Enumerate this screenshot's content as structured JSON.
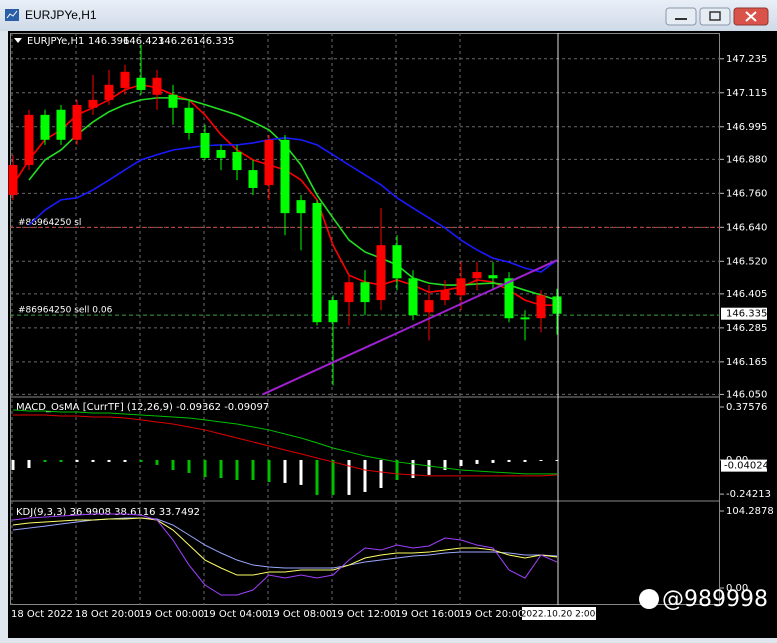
{
  "window": {
    "title": "EURJPYe,H1",
    "watermark": "@989998"
  },
  "chart_data": [
    {
      "type": "candlestick",
      "symbol": "EURJPYe,H1",
      "categories": [
        "18 Oct 2022",
        null,
        null,
        null,
        "18 Oct 20:00",
        null,
        null,
        null,
        "19 Oct 00:00",
        null,
        null,
        null,
        "19 Oct 04:00",
        null,
        null,
        null,
        "19 Oct 08:00",
        null,
        null,
        null,
        "19 Oct 12:00",
        null,
        null,
        null,
        "19 Oct 16:00",
        null,
        null,
        null,
        "19 Oct 20:00",
        null,
        null,
        null,
        null,
        null,
        null
      ],
      "cursor_label": "2022.10.20 2:00",
      "ohlc": [
        [
          146.754,
          146.895,
          146.736,
          146.86
        ],
        [
          146.86,
          147.055,
          146.842,
          147.037
        ],
        [
          147.037,
          147.055,
          146.931,
          146.949
        ],
        [
          147.055,
          147.072,
          146.931,
          146.949
        ],
        [
          146.949,
          147.09,
          146.931,
          147.072
        ],
        [
          147.062,
          147.178,
          147.037,
          147.09
        ],
        [
          147.09,
          147.196,
          147.072,
          147.143
        ],
        [
          147.132,
          147.214,
          147.108,
          147.189
        ],
        [
          147.168,
          147.285,
          147.108,
          147.125
        ],
        [
          147.108,
          147.196,
          147.055,
          147.168
        ],
        [
          147.108,
          147.143,
          147.002,
          147.062
        ],
        [
          147.062,
          147.09,
          146.949,
          146.973
        ],
        [
          146.973,
          147.002,
          146.878,
          146.885
        ],
        [
          146.913,
          146.931,
          146.842,
          146.885
        ],
        [
          146.906,
          146.931,
          146.807,
          146.842
        ],
        [
          146.842,
          146.878,
          146.754,
          146.779
        ],
        [
          146.789,
          146.966,
          146.736,
          146.949
        ],
        [
          146.949,
          146.966,
          146.612,
          146.69
        ],
        [
          146.736,
          146.754,
          146.559,
          146.69
        ],
        [
          146.726,
          146.736,
          146.294,
          146.305
        ],
        [
          146.383,
          146.4,
          146.082,
          146.305
        ],
        [
          146.376,
          146.471,
          146.294,
          146.446
        ],
        [
          146.446,
          146.489,
          146.33,
          146.376
        ],
        [
          146.383,
          146.708,
          146.347,
          146.577
        ],
        [
          146.577,
          146.612,
          146.418,
          146.46
        ],
        [
          146.46,
          146.489,
          146.312,
          146.33
        ],
        [
          146.34,
          146.436,
          146.241,
          146.383
        ],
        [
          146.383,
          146.453,
          146.365,
          146.418
        ],
        [
          146.4,
          146.517,
          146.347,
          146.46
        ],
        [
          146.46,
          146.517,
          146.418,
          146.482
        ],
        [
          146.471,
          146.517,
          146.418,
          146.46
        ],
        [
          146.46,
          146.482,
          146.305,
          146.319
        ],
        [
          146.322,
          146.347,
          146.241,
          146.315
        ],
        [
          146.319,
          146.418,
          146.269,
          146.4
        ],
        [
          146.396,
          146.423,
          146.261,
          146.335
        ]
      ],
      "up_color": "#ff0000",
      "down_color": "#00ff00",
      "series": [
        {
          "color": "#ff0000",
          "values": [
            146.79,
            146.878,
            146.949,
            146.984,
            147.037,
            147.062,
            147.09,
            147.126,
            147.143,
            147.133,
            147.108,
            147.09,
            147.037,
            146.967,
            146.913,
            146.878,
            146.86,
            146.843,
            146.807,
            146.737,
            146.577,
            146.471,
            146.447,
            146.436,
            146.454,
            146.436,
            146.411,
            146.418,
            146.429,
            146.454,
            146.447,
            146.418,
            146.383,
            146.365,
            146.365
          ]
        },
        {
          "color": "#22dd22",
          "values": [
            null,
            146.807,
            146.878,
            146.913,
            146.967,
            147.012,
            147.048,
            147.073,
            147.09,
            147.097,
            147.097,
            147.09,
            147.073,
            147.055,
            147.037,
            147.012,
            146.984,
            146.931,
            146.86,
            146.754,
            146.673,
            146.595,
            146.553,
            146.531,
            146.507,
            146.461,
            146.443,
            146.436,
            146.436,
            146.44,
            146.443,
            146.436,
            146.418,
            146.401,
            146.383
          ]
        },
        {
          "color": "#1a1aff",
          "values": [
            null,
            146.648,
            146.701,
            146.737,
            146.744,
            146.772,
            146.807,
            146.843,
            146.878,
            146.896,
            146.913,
            146.921,
            146.928,
            146.931,
            146.931,
            146.938,
            146.949,
            146.956,
            146.949,
            146.931,
            146.896,
            146.86,
            146.825,
            146.79,
            146.744,
            146.708,
            146.673,
            146.638,
            146.595,
            146.56,
            146.531,
            146.517,
            146.496,
            146.482,
            146.524
          ]
        }
      ],
      "lines": [
        {
          "label": "#86964250 sl",
          "value": 146.64,
          "color": "#c84040"
        },
        {
          "label": "#86964250 sell 0.06",
          "value": 146.33,
          "color": "#3aa03a"
        }
      ],
      "trendline": {
        "color": "#a020d0",
        "points": [
          [
            15.6,
            146.05
          ],
          [
            34,
            146.524
          ]
        ]
      },
      "ylim": [
        146.048,
        147.326
      ],
      "yticks": [
        147.235,
        147.115,
        146.995,
        {
          "value": 146.88,
          "label": "146.880"
        },
        {
          "value": 146.76,
          "label": "146.760"
        },
        {
          "value": 146.64,
          "label": "146.640"
        },
        {
          "value": 146.52,
          "label": "146.520"
        },
        146.405,
        146.285,
        146.165,
        {
          "value": 146.05,
          "label": "146.050"
        }
      ],
      "grid": true
    },
    {
      "type": "macd",
      "title": "MACD_OsMA [CurrTF] (12,26,9) -0.09362 -0.09097",
      "values": [
        -0.071,
        -0.057,
        -0.014,
        -0.014,
        -0.014,
        -0.014,
        -0.014,
        -0.014,
        -0.014,
        -0.035,
        -0.071,
        -0.092,
        -0.121,
        -0.128,
        -0.142,
        -0.142,
        -0.156,
        -0.163,
        -0.177,
        -0.248,
        -0.248,
        -0.248,
        -0.227,
        -0.199,
        -0.142,
        -0.128,
        -0.106,
        -0.071,
        -0.043,
        -0.028,
        -0.021,
        -0.014,
        -0.014,
        -0.007,
        -0.007
      ],
      "bar_colors": [
        "#ffffff",
        "#ffffff",
        "#00c000",
        "#00c000",
        "#ffffff",
        "#ffffff",
        "#ffffff",
        "#ffffff",
        "#00c000",
        "#00c000",
        "#00c000",
        "#00c000",
        "#00c000",
        "#00c000",
        "#00c000",
        "#00c000",
        "#00c000",
        "#ffffff",
        "#ffffff",
        "#00c000",
        "#00c000",
        "#ffffff",
        "#ffffff",
        "#ffffff",
        "#00c000",
        "#ffffff",
        "#ffffff",
        "#ffffff",
        "#ffffff",
        "#ffffff",
        "#ffffff",
        "#ffffff",
        "#ffffff",
        "#ffffff",
        "#ffffff"
      ],
      "series": [
        {
          "color": "#00c000",
          "values": [
            0.355,
            0.347,
            0.347,
            0.34,
            0.34,
            0.333,
            0.333,
            0.326,
            0.319,
            0.312,
            0.305,
            0.298,
            0.284,
            0.269,
            0.255,
            0.234,
            0.213,
            0.184,
            0.156,
            0.121,
            0.085,
            0.057,
            0.028,
            0.007,
            -0.014,
            -0.028,
            -0.043,
            -0.057,
            -0.071,
            -0.078,
            -0.085,
            -0.092,
            -0.099,
            -0.099,
            -0.099
          ]
        },
        {
          "color": "#e00000",
          "values": [
            0.319,
            0.319,
            0.319,
            0.312,
            0.312,
            0.305,
            0.305,
            0.298,
            0.284,
            0.269,
            0.255,
            0.234,
            0.213,
            0.184,
            0.156,
            0.128,
            0.099,
            0.071,
            0.043,
            0.014,
            -0.014,
            -0.043,
            -0.071,
            -0.085,
            -0.099,
            -0.106,
            -0.113,
            -0.113,
            -0.113,
            -0.113,
            -0.113,
            -0.113,
            -0.113,
            -0.113,
            -0.106
          ]
        }
      ],
      "current_value": -0.04024,
      "ylim": [
        -0.284,
        0.4396
      ],
      "yticks": [
        0.37576,
        {
          "value": 0,
          "label": "0.00"
        },
        -0.24213
      ]
    },
    {
      "type": "line",
      "title": "KDJ(9,3,3) 36.9908 38.6116 33.7492",
      "series": [
        {
          "color": "#9aa8ff",
          "values": [
            78.5,
            81.2,
            83.9,
            86.7,
            89.4,
            92.1,
            93.4,
            94.8,
            94.8,
            93.4,
            85.3,
            71.8,
            58.2,
            47.4,
            37.9,
            31.1,
            28.4,
            27.1,
            27.1,
            27.1,
            27.1,
            31.1,
            35.2,
            37.9,
            40.6,
            43.3,
            44.7,
            47.4,
            48.7,
            48.7,
            48.7,
            47.4,
            44.7,
            44.7,
            43.3
          ]
        },
        {
          "color": "#ffff66",
          "values": [
            85.3,
            88.0,
            89.4,
            90.7,
            92.1,
            92.1,
            93.4,
            93.4,
            94.8,
            92.1,
            78.5,
            58.2,
            37.9,
            27.1,
            17.6,
            17.6,
            21.7,
            21.7,
            24.4,
            24.4,
            24.4,
            31.1,
            40.6,
            44.7,
            47.4,
            47.4,
            48.7,
            51.5,
            54.2,
            54.2,
            51.5,
            44.7,
            40.6,
            44.7,
            42.0
          ]
        },
        {
          "color": "#a040ff",
          "values": [
            92.1,
            94.8,
            96.1,
            97.5,
            98.8,
            100.2,
            100.2,
            100.2,
            98.8,
            92.1,
            65.0,
            31.1,
            4.1,
            -9.5,
            -9.5,
            -2.7,
            17.6,
            13.5,
            17.6,
            13.5,
            17.6,
            37.9,
            54.2,
            51.5,
            58.2,
            54.2,
            56.9,
            67.7,
            65.0,
            58.2,
            54.2,
            24.4,
            13.5,
            44.7,
            35.2
          ]
        }
      ],
      "ylim": [
        -23.0,
        116.5
      ],
      "yticks": [
        104.2878,
        {
          "value": 0,
          "label": "0.00"
        }
      ]
    }
  ]
}
